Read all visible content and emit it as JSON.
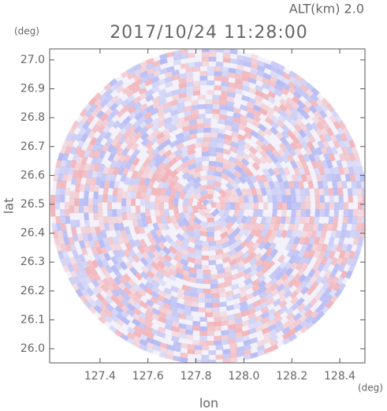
{
  "chart_data": {
    "type": "ppi",
    "title": "2017/10/24 11:28:00",
    "subtitle": "ALT(km) 2.0",
    "x_label": "lon",
    "y_label": "lat",
    "x_unit": "(deg)",
    "y_unit": "(deg)",
    "xlim": [
      127.19,
      128.505
    ],
    "ylim": [
      25.951,
      27.038
    ],
    "xticks": [
      127.4,
      127.6,
      127.8,
      {
        "value": 128,
        "label": "128.0"
      },
      128.2,
      128.4
    ],
    "yticks": [
      {
        "value": 26,
        "label": "26.0"
      },
      26.1,
      26.2,
      26.3,
      26.4,
      26.5,
      26.6,
      26.7,
      26.8,
      26.9,
      {
        "value": 27,
        "label": "27.0"
      }
    ]
  }
}
